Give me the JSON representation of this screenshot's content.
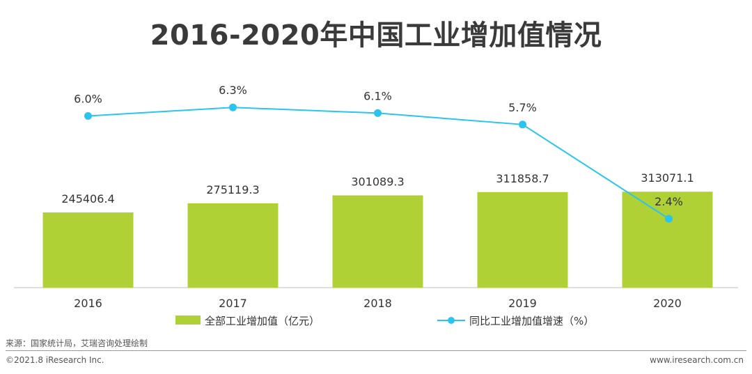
{
  "title": "2016-2020年中国工业增加值情况",
  "chart_data": {
    "type": "bar+line",
    "categories": [
      "2016",
      "2017",
      "2018",
      "2019",
      "2020"
    ],
    "series": [
      {
        "name": "全部工业增加值（亿元）",
        "type": "bar",
        "values": [
          245406.4,
          275119.3,
          301089.3,
          311858.7,
          313071.1
        ],
        "labels": [
          "245406.4",
          "275119.3",
          "301089.3",
          "311858.7",
          "313071.1"
        ],
        "color": "#b0d136"
      },
      {
        "name": "同比工业增加值增速（%）",
        "type": "line",
        "values": [
          6.0,
          6.3,
          6.1,
          5.7,
          2.4
        ],
        "labels": [
          "6.0%",
          "6.3%",
          "6.1%",
          "5.7%",
          "2.4%"
        ],
        "color": "#29c4ef"
      }
    ],
    "legend_position": "bottom"
  },
  "footer": {
    "source": "来源：国家统计局，艾瑞咨询处理绘制",
    "copyright": "©2021.8 iResearch Inc.",
    "website": "www.iresearch.com.cn"
  }
}
